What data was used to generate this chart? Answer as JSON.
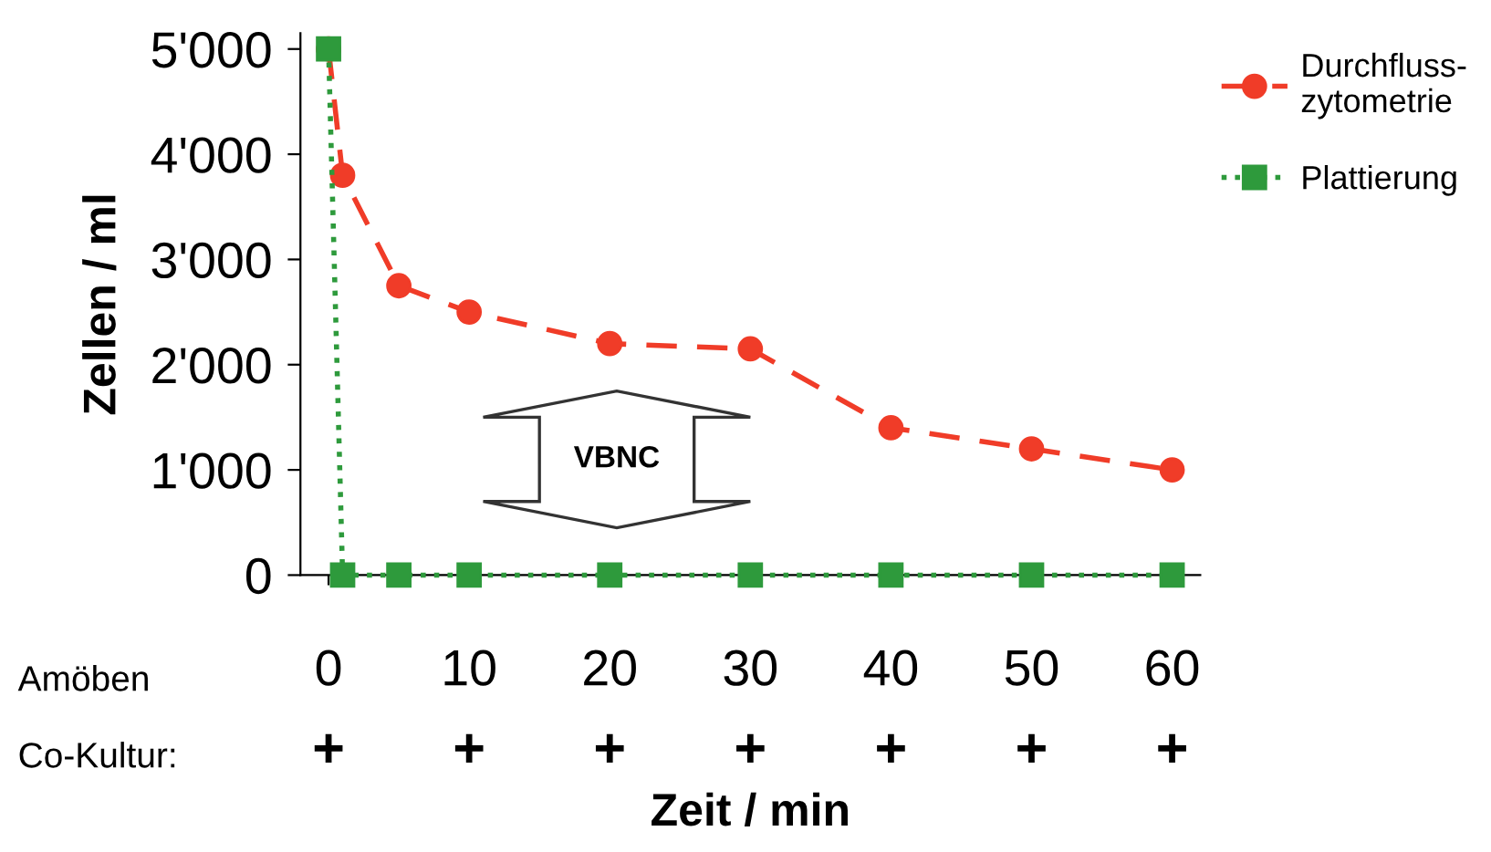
{
  "chart_data": {
    "type": "line",
    "xlabel": "Zeit / min",
    "ylabel": "Zellen / ml",
    "xlim": [
      -2,
      62
    ],
    "xticks": [
      0,
      10,
      20,
      30,
      40,
      50,
      60
    ],
    "ylim": [
      0,
      5150
    ],
    "yticks": [
      {
        "value": 0,
        "label": "0"
      },
      {
        "value": 1000,
        "label": "1'000"
      },
      {
        "value": 2000,
        "label": "2'000"
      },
      {
        "value": 3000,
        "label": "3'000"
      },
      {
        "value": 4000,
        "label": "4'000"
      },
      {
        "value": 5000,
        "label": "5'000"
      }
    ],
    "series": [
      {
        "name": "Durchfluss-\nzytometrie",
        "color": "#f03c28",
        "marker": "circle",
        "line_style": "dashed",
        "x": [
          0,
          1,
          5,
          10,
          20,
          30,
          40,
          50,
          60
        ],
        "values": [
          5000,
          3800,
          2750,
          2500,
          2200,
          2150,
          1400,
          1200,
          1000
        ]
      },
      {
        "name": "Plattierung",
        "color": "#2e9a3c",
        "marker": "square",
        "line_style": "dotted",
        "x": [
          0,
          1,
          5,
          10,
          20,
          30,
          40,
          50,
          60
        ],
        "values": [
          5000,
          0,
          0,
          0,
          0,
          0,
          0,
          0,
          0
        ]
      }
    ],
    "legend": "top right",
    "grid": false,
    "annotations": [
      "Amöben",
      "Co-Kultur:",
      "VBNC",
      "+",
      "+",
      "+",
      "+",
      "+",
      "+",
      "+"
    ]
  }
}
